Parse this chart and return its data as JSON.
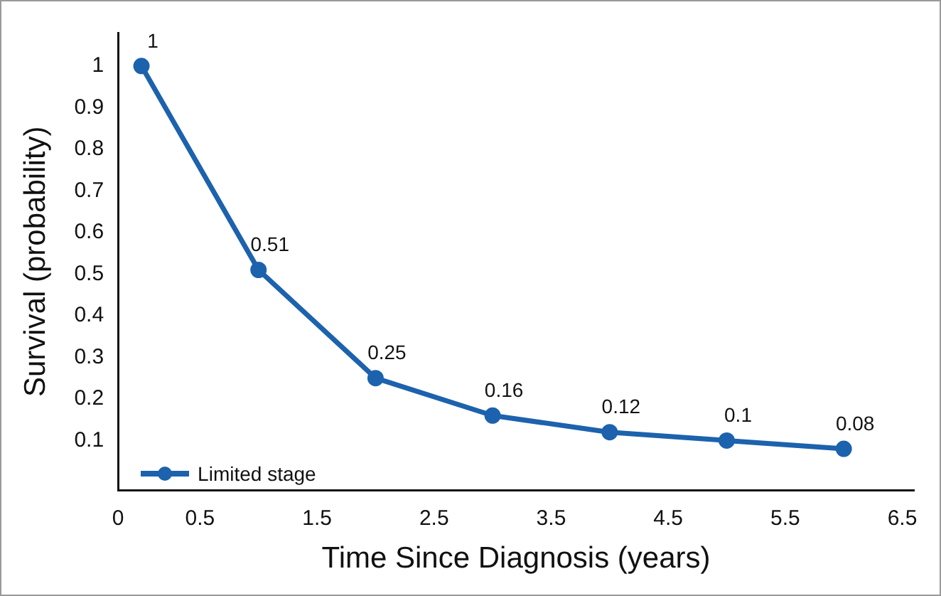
{
  "chart_data": {
    "type": "line",
    "xlabel": "Time Since Diagnosis (years)",
    "ylabel": "Survival (probability)",
    "x": [
      0,
      1,
      2,
      3,
      4,
      5,
      6
    ],
    "series": [
      {
        "name": "Limited stage",
        "color": "#1c62ad",
        "values": [
          1,
          0.51,
          0.25,
          0.16,
          0.12,
          0.1,
          0.08
        ]
      }
    ],
    "xlim": [
      -0.2,
      6.6
    ],
    "xticks": [
      {
        "value": -0.2,
        "label": "0"
      },
      0.5,
      1.5,
      2.5,
      3.5,
      4.5,
      5.5,
      6.5
    ],
    "ylim": [
      -0.02,
      1.08
    ],
    "yticks": [
      0.1,
      0.2,
      0.3,
      0.4,
      0.5,
      0.6,
      0.7,
      0.8,
      0.9,
      1
    ],
    "grid": false,
    "legend": "bottom left",
    "marker": "circle",
    "line_style": "solid",
    "data_labels": true
  }
}
